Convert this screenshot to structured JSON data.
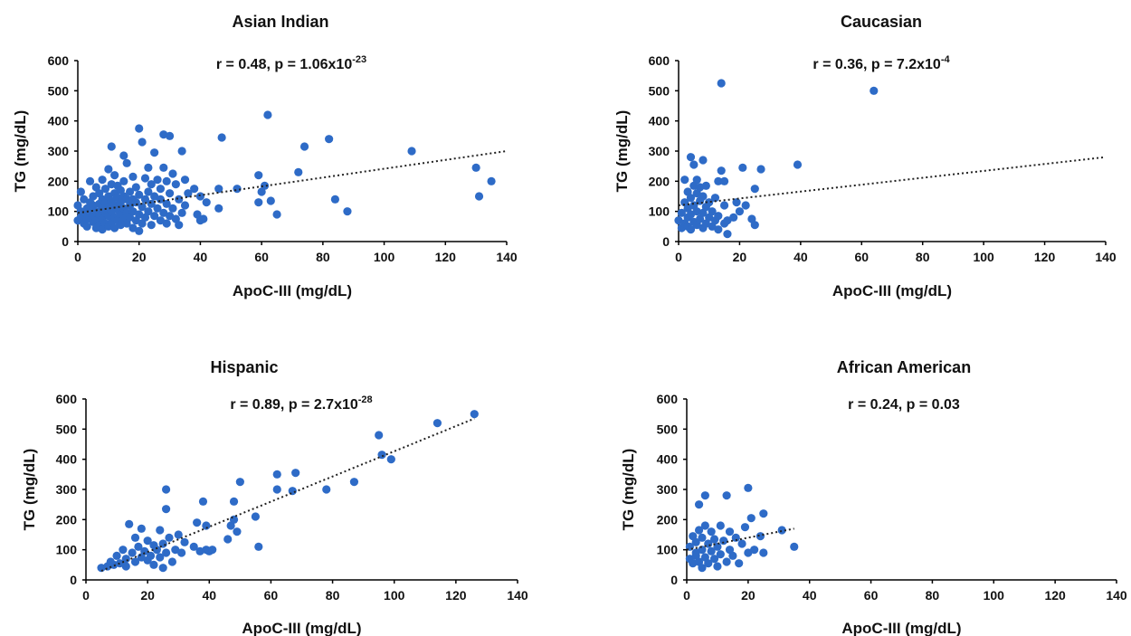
{
  "chart_data": [
    {
      "type": "scatter",
      "title": "Asian Indian",
      "annotation": {
        "r_text": "r = 0.48, p = 1.06x10",
        "p_exp": "-23"
      },
      "xlabel": "ApoC-III (mg/dL)",
      "ylabel": "TG (mg/dL)",
      "xlim": [
        0,
        140
      ],
      "ylim": [
        0,
        600
      ],
      "xticks": [
        "0",
        "20",
        "40",
        "60",
        "80",
        "100",
        "120",
        "140"
      ],
      "yticks": [
        "0",
        "100",
        "200",
        "300",
        "400",
        "500",
        "600"
      ],
      "trendline": [
        [
          0,
          95
        ],
        [
          140,
          300
        ]
      ],
      "points": [
        [
          0,
          70
        ],
        [
          0,
          120
        ],
        [
          1,
          80
        ],
        [
          1,
          100
        ],
        [
          1,
          165
        ],
        [
          2,
          60
        ],
        [
          2,
          90
        ],
        [
          2,
          140
        ],
        [
          3,
          75
        ],
        [
          3,
          110
        ],
        [
          3,
          50
        ],
        [
          4,
          95
        ],
        [
          4,
          130
        ],
        [
          4,
          200
        ],
        [
          5,
          65
        ],
        [
          5,
          85
        ],
        [
          5,
          120
        ],
        [
          5,
          150
        ],
        [
          6,
          45
        ],
        [
          6,
          70
        ],
        [
          6,
          100
        ],
        [
          6,
          180
        ],
        [
          7,
          55
        ],
        [
          7,
          90
        ],
        [
          7,
          125
        ],
        [
          7,
          160
        ],
        [
          8,
          40
        ],
        [
          8,
          75
        ],
        [
          8,
          110
        ],
        [
          8,
          140
        ],
        [
          8,
          205
        ],
        [
          9,
          60
        ],
        [
          9,
          95
        ],
        [
          9,
          130
        ],
        [
          9,
          175
        ],
        [
          10,
          50
        ],
        [
          10,
          85
        ],
        [
          10,
          115
        ],
        [
          10,
          150
        ],
        [
          10,
          240
        ],
        [
          11,
          315
        ],
        [
          11,
          65
        ],
        [
          11,
          100
        ],
        [
          11,
          135
        ],
        [
          11,
          190
        ],
        [
          12,
          45
        ],
        [
          12,
          80
        ],
        [
          12,
          120
        ],
        [
          12,
          160
        ],
        [
          12,
          220
        ],
        [
          13,
          70
        ],
        [
          13,
          105
        ],
        [
          13,
          145
        ],
        [
          13,
          185
        ],
        [
          14,
          55
        ],
        [
          14,
          90
        ],
        [
          14,
          130
        ],
        [
          14,
          170
        ],
        [
          15,
          75
        ],
        [
          15,
          110
        ],
        [
          15,
          150
        ],
        [
          15,
          200
        ],
        [
          15,
          285
        ],
        [
          16,
          60
        ],
        [
          16,
          95
        ],
        [
          16,
          140
        ],
        [
          16,
          260
        ],
        [
          17,
          80
        ],
        [
          17,
          120
        ],
        [
          17,
          165
        ],
        [
          18,
          45
        ],
        [
          18,
          100
        ],
        [
          18,
          140
        ],
        [
          18,
          215
        ],
        [
          19,
          70
        ],
        [
          19,
          130
        ],
        [
          19,
          180
        ],
        [
          20,
          35
        ],
        [
          20,
          90
        ],
        [
          20,
          155
        ],
        [
          20,
          375
        ],
        [
          21,
          60
        ],
        [
          21,
          115
        ],
        [
          21,
          330
        ],
        [
          22,
          80
        ],
        [
          22,
          140
        ],
        [
          22,
          210
        ],
        [
          23,
          100
        ],
        [
          23,
          165
        ],
        [
          23,
          245
        ],
        [
          24,
          55
        ],
        [
          24,
          125
        ],
        [
          24,
          190
        ],
        [
          25,
          85
        ],
        [
          25,
          150
        ],
        [
          25,
          295
        ],
        [
          26,
          110
        ],
        [
          26,
          205
        ],
        [
          27,
          70
        ],
        [
          27,
          140
        ],
        [
          27,
          175
        ],
        [
          28,
          95
        ],
        [
          28,
          245
        ],
        [
          28,
          355
        ],
        [
          29,
          60
        ],
        [
          29,
          125
        ],
        [
          29,
          200
        ],
        [
          30,
          85
        ],
        [
          30,
          160
        ],
        [
          30,
          350
        ],
        [
          31,
          110
        ],
        [
          31,
          225
        ],
        [
          32,
          75
        ],
        [
          32,
          190
        ],
        [
          33,
          55
        ],
        [
          33,
          140
        ],
        [
          34,
          95
        ],
        [
          34,
          300
        ],
        [
          35,
          120
        ],
        [
          35,
          205
        ],
        [
          36,
          160
        ],
        [
          38,
          175
        ],
        [
          39,
          90
        ],
        [
          40,
          70
        ],
        [
          40,
          150
        ],
        [
          41,
          75
        ],
        [
          42,
          130
        ],
        [
          46,
          110
        ],
        [
          46,
          175
        ],
        [
          47,
          345
        ],
        [
          52,
          175
        ],
        [
          59,
          130
        ],
        [
          59,
          220
        ],
        [
          60,
          165
        ],
        [
          61,
          185
        ],
        [
          62,
          420
        ],
        [
          63,
          135
        ],
        [
          65,
          90
        ],
        [
          72,
          230
        ],
        [
          74,
          315
        ],
        [
          82,
          340
        ],
        [
          84,
          140
        ],
        [
          88,
          100
        ],
        [
          109,
          300
        ],
        [
          130,
          245
        ],
        [
          131,
          150
        ],
        [
          135,
          200
        ]
      ]
    },
    {
      "type": "scatter",
      "title": "Caucasian",
      "annotation": {
        "r_text": "r = 0.36, p = 7.2x10",
        "p_exp": "-4"
      },
      "xlabel": "ApoC-III (mg/dL)",
      "ylabel": "TG (mg/dL)",
      "xlim": [
        0,
        140
      ],
      "ylim": [
        0,
        600
      ],
      "xticks": [
        "0",
        "20",
        "40",
        "60",
        "80",
        "100",
        "120",
        "140"
      ],
      "yticks": [
        "0",
        "100",
        "200",
        "300",
        "400",
        "500",
        "600"
      ],
      "trendline": [
        [
          0,
          120
        ],
        [
          140,
          280
        ]
      ],
      "points": [
        [
          0,
          70
        ],
        [
          1,
          45
        ],
        [
          1,
          95
        ],
        [
          2,
          60
        ],
        [
          2,
          130
        ],
        [
          2,
          205
        ],
        [
          3,
          50
        ],
        [
          3,
          80
        ],
        [
          3,
          110
        ],
        [
          3,
          165
        ],
        [
          4,
          280
        ],
        [
          4,
          40
        ],
        [
          4,
          90
        ],
        [
          4,
          145
        ],
        [
          5,
          65
        ],
        [
          5,
          120
        ],
        [
          5,
          185
        ],
        [
          5,
          255
        ],
        [
          6,
          55
        ],
        [
          6,
          100
        ],
        [
          6,
          160
        ],
        [
          6,
          205
        ],
        [
          7,
          75
        ],
        [
          7,
          135
        ],
        [
          7,
          180
        ],
        [
          8,
          45
        ],
        [
          8,
          95
        ],
        [
          8,
          150
        ],
        [
          8,
          270
        ],
        [
          9,
          60
        ],
        [
          9,
          115
        ],
        [
          9,
          185
        ],
        [
          10,
          80
        ],
        [
          10,
          130
        ],
        [
          11,
          50
        ],
        [
          11,
          100
        ],
        [
          12,
          70
        ],
        [
          12,
          145
        ],
        [
          13,
          40
        ],
        [
          13,
          85
        ],
        [
          13,
          200
        ],
        [
          14,
          525
        ],
        [
          14,
          235
        ],
        [
          15,
          60
        ],
        [
          15,
          120
        ],
        [
          15,
          200
        ],
        [
          16,
          25
        ],
        [
          16,
          70
        ],
        [
          18,
          80
        ],
        [
          19,
          130
        ],
        [
          20,
          100
        ],
        [
          21,
          245
        ],
        [
          22,
          120
        ],
        [
          24,
          75
        ],
        [
          25,
          175
        ],
        [
          25,
          55
        ],
        [
          27,
          240
        ],
        [
          39,
          255
        ],
        [
          64,
          500
        ]
      ]
    },
    {
      "type": "scatter",
      "title": "Hispanic",
      "annotation": {
        "r_text": "r = 0.89, p = 2.7x10",
        "p_exp": "-28"
      },
      "xlabel": "ApoC-III (mg/dL)",
      "ylabel": "TG (mg/dL)",
      "xlim": [
        0,
        140
      ],
      "ylim": [
        0,
        600
      ],
      "xticks": [
        "0",
        "20",
        "40",
        "60",
        "80",
        "100",
        "120",
        "140"
      ],
      "yticks": [
        "0",
        "100",
        "200",
        "300",
        "400",
        "500",
        "600"
      ],
      "trendline": [
        [
          5,
          30
        ],
        [
          126,
          535
        ]
      ],
      "points": [
        [
          5,
          40
        ],
        [
          7,
          45
        ],
        [
          8,
          60
        ],
        [
          9,
          50
        ],
        [
          10,
          80
        ],
        [
          11,
          55
        ],
        [
          12,
          100
        ],
        [
          13,
          70
        ],
        [
          13,
          45
        ],
        [
          14,
          185
        ],
        [
          15,
          90
        ],
        [
          16,
          140
        ],
        [
          16,
          60
        ],
        [
          17,
          110
        ],
        [
          18,
          170
        ],
        [
          18,
          75
        ],
        [
          19,
          95
        ],
        [
          20,
          130
        ],
        [
          20,
          65
        ],
        [
          21,
          80
        ],
        [
          22,
          115
        ],
        [
          22,
          50
        ],
        [
          23,
          100
        ],
        [
          24,
          75
        ],
        [
          24,
          165
        ],
        [
          25,
          40
        ],
        [
          25,
          120
        ],
        [
          26,
          300
        ],
        [
          26,
          235
        ],
        [
          26,
          90
        ],
        [
          27,
          140
        ],
        [
          28,
          60
        ],
        [
          29,
          100
        ],
        [
          30,
          150
        ],
        [
          31,
          90
        ],
        [
          32,
          125
        ],
        [
          35,
          110
        ],
        [
          36,
          190
        ],
        [
          37,
          95
        ],
        [
          38,
          260
        ],
        [
          39,
          180
        ],
        [
          39,
          100
        ],
        [
          40,
          95
        ],
        [
          41,
          100
        ],
        [
          46,
          135
        ],
        [
          47,
          180
        ],
        [
          48,
          200
        ],
        [
          48,
          260
        ],
        [
          49,
          160
        ],
        [
          50,
          325
        ],
        [
          55,
          210
        ],
        [
          56,
          110
        ],
        [
          62,
          350
        ],
        [
          62,
          300
        ],
        [
          67,
          295
        ],
        [
          68,
          355
        ],
        [
          78,
          300
        ],
        [
          87,
          325
        ],
        [
          95,
          480
        ],
        [
          96,
          415
        ],
        [
          99,
          400
        ],
        [
          114,
          520
        ],
        [
          126,
          550
        ]
      ]
    },
    {
      "type": "scatter",
      "title": "African American",
      "annotation": {
        "r_text": "r = 0.24, p = 0.03",
        "p_exp": ""
      },
      "xlabel": "ApoC-III (mg/dL)",
      "ylabel": "TG (mg/dL)",
      "xlim": [
        0,
        140
      ],
      "ylim": [
        0,
        600
      ],
      "xticks": [
        "0",
        "20",
        "40",
        "60",
        "80",
        "100",
        "120",
        "140"
      ],
      "yticks": [
        "0",
        "100",
        "200",
        "300",
        "400",
        "500",
        "600"
      ],
      "trendline": [
        [
          0,
          100
        ],
        [
          35,
          170
        ]
      ],
      "points": [
        [
          1,
          70
        ],
        [
          1,
          110
        ],
        [
          2,
          55
        ],
        [
          2,
          145
        ],
        [
          3,
          80
        ],
        [
          3,
          125
        ],
        [
          3,
          90
        ],
        [
          4,
          250
        ],
        [
          4,
          60
        ],
        [
          4,
          165
        ],
        [
          5,
          100
        ],
        [
          5,
          40
        ],
        [
          5,
          140
        ],
        [
          6,
          280
        ],
        [
          6,
          75
        ],
        [
          6,
          180
        ],
        [
          7,
          120
        ],
        [
          7,
          55
        ],
        [
          8,
          95
        ],
        [
          8,
          160
        ],
        [
          9,
          70
        ],
        [
          9,
          135
        ],
        [
          10,
          45
        ],
        [
          10,
          110
        ],
        [
          11,
          180
        ],
        [
          11,
          85
        ],
        [
          12,
          130
        ],
        [
          13,
          280
        ],
        [
          13,
          60
        ],
        [
          14,
          100
        ],
        [
          14,
          160
        ],
        [
          15,
          80
        ],
        [
          16,
          140
        ],
        [
          17,
          55
        ],
        [
          18,
          120
        ],
        [
          19,
          175
        ],
        [
          20,
          90
        ],
        [
          20,
          305
        ],
        [
          21,
          205
        ],
        [
          22,
          100
        ],
        [
          24,
          145
        ],
        [
          25,
          220
        ],
        [
          25,
          90
        ],
        [
          31,
          165
        ],
        [
          35,
          110
        ]
      ]
    }
  ]
}
